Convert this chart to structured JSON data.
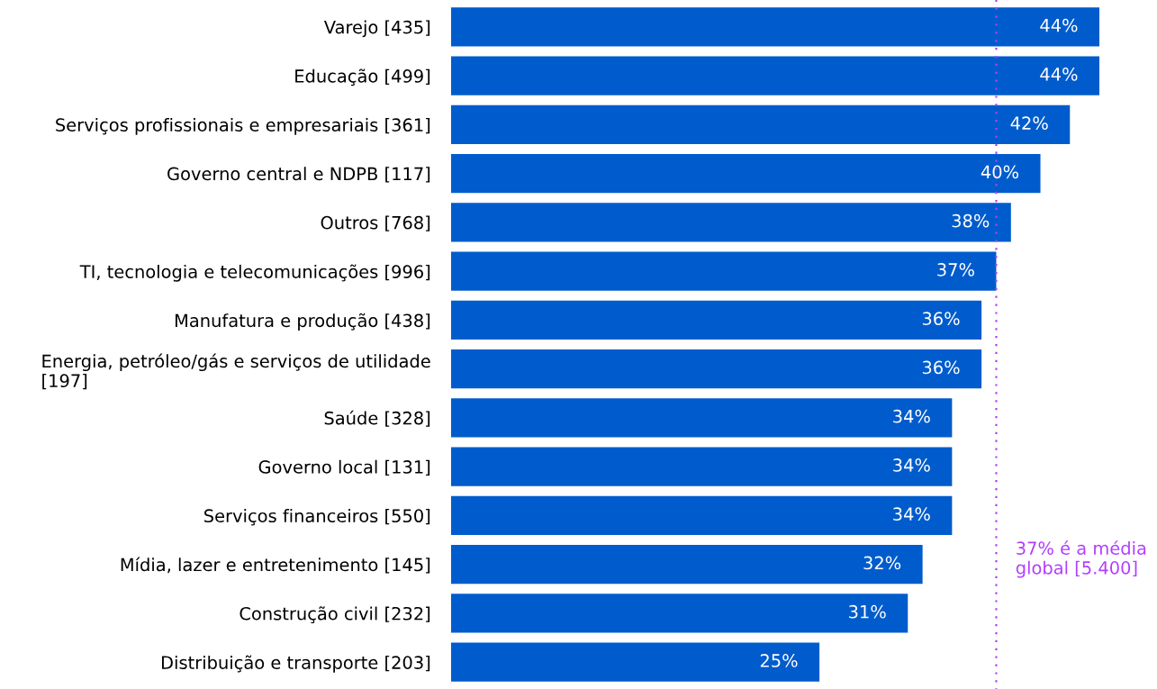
{
  "chart_data": {
    "type": "bar",
    "orientation": "horizontal",
    "categories": [
      "Varejo [435]",
      "Educação [499]",
      "Serviços profissionais e empresariais [361]",
      "Governo central e NDPB [117]",
      "Outros [768]",
      "TI, tecnologia e telecomunicações [996]",
      "Manufatura e produção [438]",
      "Energia, petróleo/gás e serviços de utilidade\n[197]",
      "Saúde [328]",
      "Governo local [131]",
      "Serviços financeiros [550]",
      "Mídia, lazer e entretenimento [145]",
      "Construção civil [232]",
      "Distribuição e transporte [203]"
    ],
    "values": [
      44,
      44,
      42,
      40,
      38,
      37,
      36,
      36,
      34,
      34,
      34,
      32,
      31,
      25
    ],
    "value_labels": [
      "44%",
      "44%",
      "42%",
      "40%",
      "38%",
      "37%",
      "36%",
      "36%",
      "34%",
      "34%",
      "34%",
      "32%",
      "31%",
      "25%"
    ],
    "color": "#005ccc",
    "tick_labels": "y",
    "grid": false,
    "ref_lines": [
      {
        "axis": "x",
        "value": 37,
        "label": "37% é a média global [5.400]",
        "color": "#b33dff",
        "line_style": "dotted"
      }
    ]
  }
}
